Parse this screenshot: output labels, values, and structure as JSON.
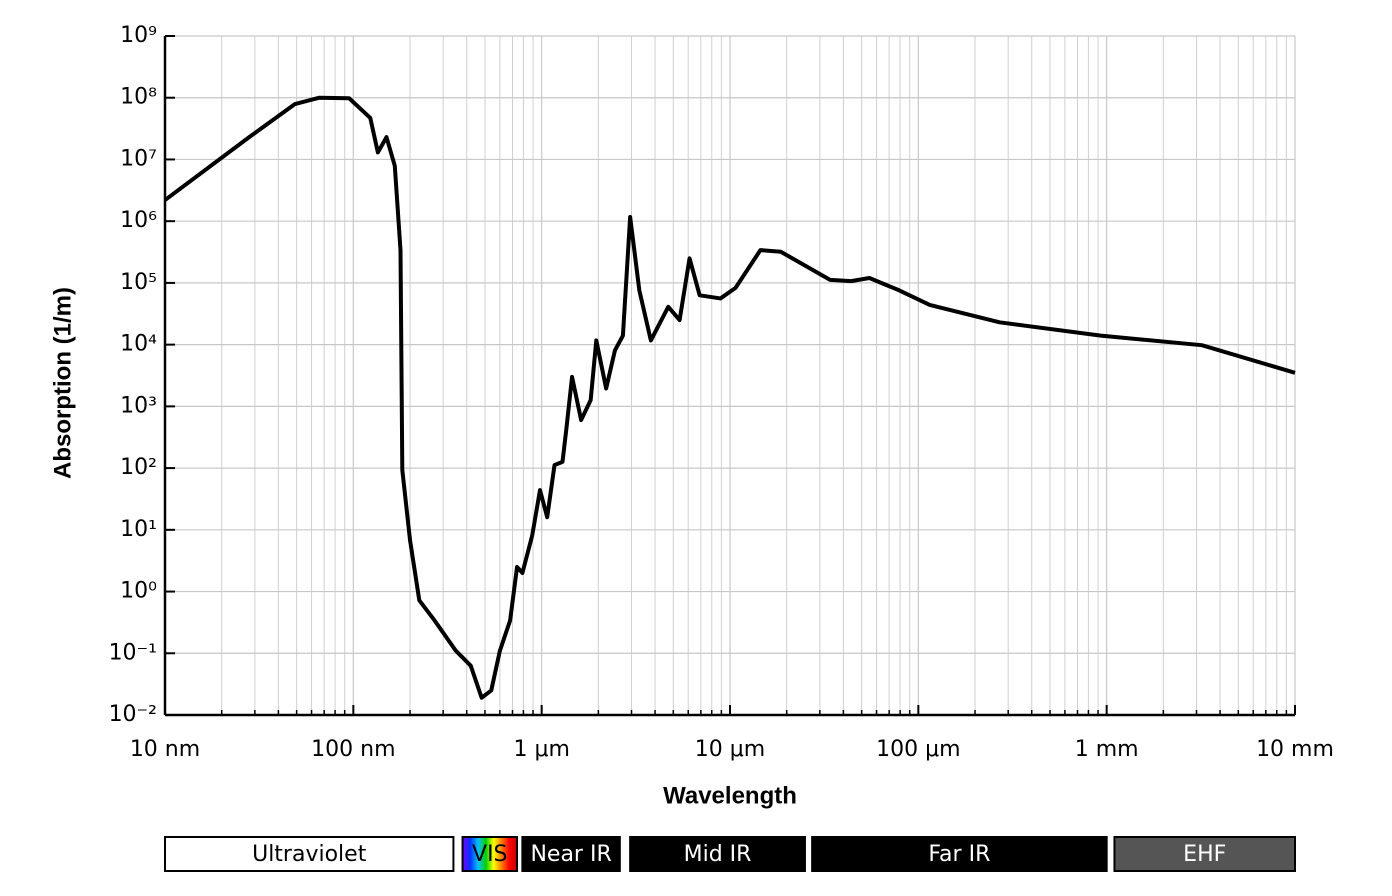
{
  "chart_data": {
    "type": "line",
    "xlabel": "Wavelength",
    "ylabel": "Absorption (1/m)",
    "xscale": "log",
    "yscale": "log",
    "grid": true,
    "color": "#000000",
    "xlim": [
      1e-08,
      0.01
    ],
    "ylim": [
      0.01,
      1000000000.0
    ],
    "xticks": [
      {
        "value": 1e-08,
        "label": "10 nm"
      },
      {
        "value": 1e-07,
        "label": "100 nm"
      },
      {
        "value": 1e-06,
        "label": "1 μm"
      },
      {
        "value": 1e-05,
        "label": "10 μm"
      },
      {
        "value": 0.0001,
        "label": "100 μm"
      },
      {
        "value": 0.001,
        "label": "1 mm"
      },
      {
        "value": 0.01,
        "label": "10 mm"
      }
    ],
    "xminorticks": [
      2e-08,
      3e-08,
      4e-08,
      5e-08,
      6e-08,
      7e-08,
      8e-08,
      9e-08,
      2e-07,
      3e-07,
      4e-07,
      5e-07,
      6e-07,
      7e-07,
      8e-07,
      9e-07,
      2e-06,
      3e-06,
      4e-06,
      5e-06,
      6e-06,
      7e-06,
      8e-06,
      9e-06,
      2e-05,
      3e-05,
      4e-05,
      5e-05,
      6e-05,
      7e-05,
      8e-05,
      9e-05,
      0.0002,
      0.0003,
      0.0004,
      0.0005,
      0.0006,
      0.0007,
      0.0008,
      0.0009,
      0.002,
      0.003,
      0.004,
      0.005,
      0.006,
      0.007,
      0.008,
      0.009
    ],
    "yticks": [
      {
        "value": 0.01,
        "label": "10⁻²"
      },
      {
        "value": 0.1,
        "label": "10⁻¹"
      },
      {
        "value": 1,
        "label": "10⁰"
      },
      {
        "value": 10,
        "label": "10¹"
      },
      {
        "value": 100,
        "label": "10²"
      },
      {
        "value": 1000,
        "label": "10³"
      },
      {
        "value": 10000,
        "label": "10⁴"
      },
      {
        "value": 100000,
        "label": "10⁵"
      },
      {
        "value": 1000000,
        "label": "10⁶"
      },
      {
        "value": 10000000,
        "label": "10⁷"
      },
      {
        "value": 100000000,
        "label": "10⁸"
      },
      {
        "value": 1000000000,
        "label": "10⁹"
      }
    ],
    "x": [
      1e-08,
      2.8e-08,
      4.9e-08,
      6.6e-08,
      9.5e-08,
      1.23e-07,
      1.35e-07,
      1.5e-07,
      1.66e-07,
      1.78e-07,
      1.82e-07,
      2e-07,
      2.24e-07,
      2.7e-07,
      3.5e-07,
      4.2e-07,
      4.8e-07,
      5.4e-07,
      6e-07,
      6.8e-07,
      7.4e-07,
      7.9e-07,
      8.9e-07,
      9.8e-07,
      1.07e-06,
      1.17e-06,
      1.29e-06,
      1.35e-06,
      1.45e-06,
      1.62e-06,
      1.82e-06,
      1.95e-06,
      2.2e-06,
      2.45e-06,
      2.7e-06,
      2.95e-06,
      3.3e-06,
      3.8e-06,
      4.7e-06,
      5.4e-06,
      6.1e-06,
      6.9e-06,
      8.9e-06,
      1.07e-05,
      1.45e-05,
      1.86e-05,
      3.4e-05,
      4.4e-05,
      5.5e-05,
      7.9e-05,
      0.000115,
      0.00027,
      0.00093,
      0.0032,
      0.01
    ],
    "values": [
      2200000.0,
      23000000.0,
      79000000.0,
      100000000.0,
      98000000.0,
      47000000.0,
      13000000.0,
      23000000.0,
      7900000.0,
      340000.0,
      93,
      6.8,
      0.72,
      0.34,
      0.11,
      0.063,
      0.019,
      0.025,
      0.11,
      0.34,
      2.5,
      2,
      8,
      44,
      16,
      112,
      126,
      410,
      3000,
      600,
      1260,
      11700,
      1950,
      8100,
      14000,
      1170000.0,
      76000.0,
      11700.0,
      41000.0,
      25000.0,
      250000.0,
      63000.0,
      56000.0,
      83000.0,
      340000.0,
      320000.0,
      112000.0,
      107000.0,
      120000.0,
      76000.0,
      44000.0,
      23000.0,
      14000.0,
      9800,
      3500
    ],
    "bands": [
      {
        "label": "Ultraviolet",
        "start": 1e-08,
        "end": 3.4e-07,
        "color": "#ffffff",
        "text_color": "#000000"
      },
      {
        "label": "VIS",
        "start": 3.8e-07,
        "end": 7.4e-07,
        "color": [
          "#7a00ff",
          "#0033ff",
          "#00c0ff",
          "#00d000",
          "#ffff00",
          "#ff8000",
          "#ff0000",
          "#c00000"
        ],
        "text_color": "#000000"
      },
      {
        "label": "Near IR",
        "start": 7.9e-07,
        "end": 2.6e-06,
        "color": "#000000",
        "text_color": "#ffffff"
      },
      {
        "label": "Mid IR",
        "start": 2.95e-06,
        "end": 2.5e-05,
        "color": "#000000",
        "text_color": "#ffffff"
      },
      {
        "label": "Far IR",
        "start": 2.73e-05,
        "end": 0.001,
        "color": "#000000",
        "text_color": "#ffffff"
      },
      {
        "label": "EHF",
        "start": 0.0011,
        "end": 0.01,
        "color": "#555555",
        "text_color": "#ffffff"
      }
    ]
  }
}
